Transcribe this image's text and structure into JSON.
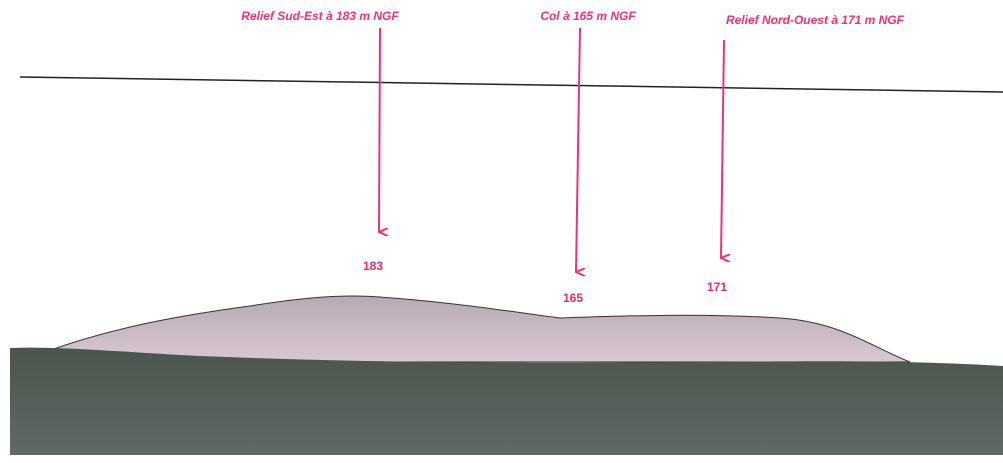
{
  "annotations": [
    {
      "label": "Relief Sud-Est à 183 m NGF",
      "elevation": "183"
    },
    {
      "label": "Col à 165 m NGF",
      "elevation": "165"
    },
    {
      "label": "Relief Nord-Ouest à 171 m NGF",
      "elevation": "171"
    }
  ]
}
